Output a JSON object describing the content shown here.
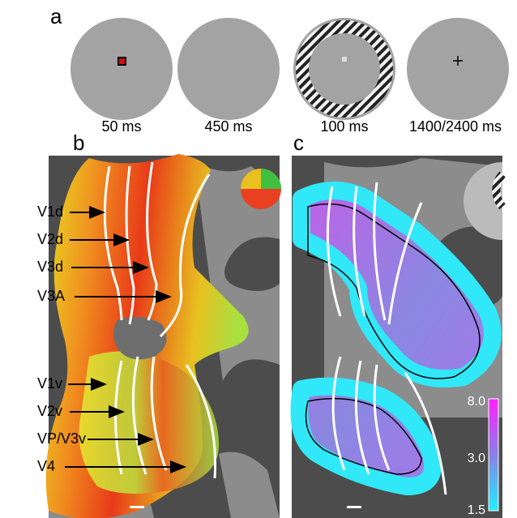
{
  "panel_a": {
    "label": "a",
    "timings": [
      "50 ms",
      "450 ms",
      "100 ms",
      "1400/2400 ms"
    ]
  },
  "panel_b": {
    "label": "b",
    "areas": [
      "V1d",
      "V2d",
      "V3d",
      "V3A",
      "V1v",
      "V2v",
      "VP/V3v",
      "V4"
    ]
  },
  "panel_c": {
    "label": "c",
    "colorbar_ticks": [
      "8.0",
      "3.0",
      "1.5"
    ]
  }
}
